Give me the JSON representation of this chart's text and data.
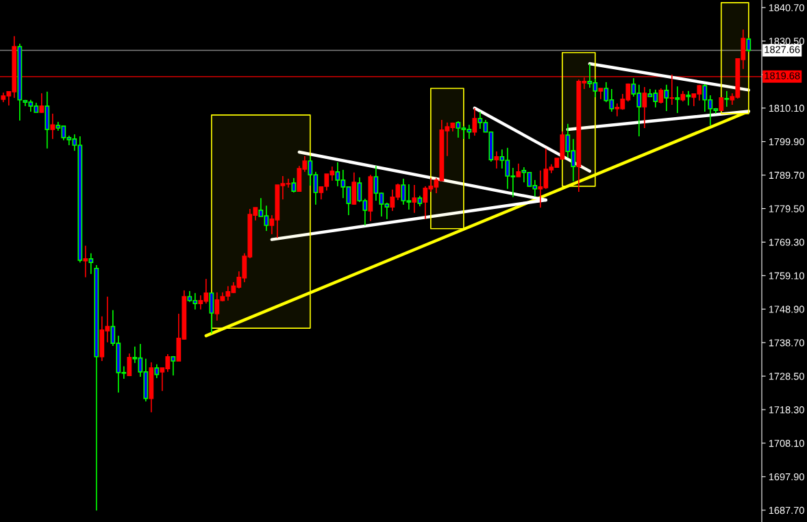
{
  "chart_data": {
    "type": "candlestick",
    "categories": [
      null,
      null,
      null,
      null,
      null,
      null,
      null,
      null,
      null,
      null,
      null,
      null,
      null,
      null,
      null,
      null,
      null,
      null,
      null,
      null,
      null,
      null,
      null,
      null,
      null,
      null,
      null,
      null,
      null,
      null,
      null,
      null,
      null,
      null,
      null,
      null,
      null,
      null,
      null,
      null,
      null,
      null,
      null,
      null,
      null,
      null,
      null,
      null,
      null,
      null,
      null,
      null,
      null,
      null,
      null,
      null,
      null,
      null,
      null,
      null,
      null,
      null,
      null,
      null,
      null,
      null,
      null,
      null,
      null,
      null,
      null,
      null,
      null,
      null,
      null,
      null,
      null,
      null,
      null,
      null,
      null,
      null,
      null,
      null,
      null,
      null,
      null,
      null,
      null,
      null,
      null,
      null,
      null,
      null,
      null,
      null,
      null,
      null,
      null,
      null,
      null,
      null,
      null,
      null,
      null,
      null,
      null,
      null,
      null,
      null,
      null,
      null,
      null,
      null,
      null,
      null,
      null,
      null,
      null,
      null,
      null,
      null,
      null,
      null,
      null,
      null,
      null,
      null,
      null,
      null,
      null,
      null,
      null,
      null,
      null,
      null,
      null
    ],
    "ohlc": [
      [
        1812.8,
        1814.8,
        1811.9,
        1813.8
      ],
      [
        1813.8,
        1815.1,
        1810.9,
        1815.1
      ],
      [
        1815.1,
        1832.0,
        1813.2,
        1828.8
      ],
      [
        1828.8,
        1829.7,
        1806.3,
        1812.6
      ],
      [
        1812.4,
        1812.6,
        1810.7,
        1811.9
      ],
      [
        1811.9,
        1812.6,
        1809.0,
        1810.7
      ],
      [
        1810.7,
        1811.7,
        1808.8,
        1808.8
      ],
      [
        1808.8,
        1814.6,
        1808.6,
        1810.7
      ],
      [
        1810.7,
        1815.1,
        1797.8,
        1803.6
      ],
      [
        1803.6,
        1808.4,
        1800.7,
        1805.0
      ],
      [
        1804.8,
        1805.9,
        1803.2,
        1804.0
      ],
      [
        1804.6,
        1804.6,
        1800.3,
        1801.1
      ],
      [
        1801.1,
        1801.7,
        1798.8,
        1800.5
      ],
      [
        1800.7,
        1802.1,
        1797.1,
        1798.8
      ],
      [
        1798.8,
        1801.5,
        1763.1,
        1763.8
      ],
      [
        1763.6,
        1768.2,
        1758.6,
        1764.2
      ],
      [
        1764.2,
        1765.9,
        1759.6,
        1763.1
      ],
      [
        1761.3,
        1762.3,
        1687.6,
        1734.4
      ],
      [
        1734.4,
        1746.7,
        1733.1,
        1742.5
      ],
      [
        1742.3,
        1752.7,
        1738.8,
        1743.6
      ],
      [
        1743.6,
        1748.6,
        1737.7,
        1738.5
      ],
      [
        1738.5,
        1740.8,
        1723.5,
        1729.6
      ],
      [
        1729.6,
        1731.5,
        1727.7,
        1729.4
      ],
      [
        1728.7,
        1735.4,
        1728.5,
        1734.2
      ],
      [
        1734.2,
        1737.5,
        1732.5,
        1733.8
      ],
      [
        1734.0,
        1738.3,
        1728.3,
        1729.8
      ],
      [
        1729.8,
        1733.8,
        1720.8,
        1721.7
      ],
      [
        1721.7,
        1732.7,
        1717.5,
        1731.0
      ],
      [
        1731.0,
        1732.1,
        1727.9,
        1729.0
      ],
      [
        1729.8,
        1731.0,
        1724.0,
        1731.0
      ],
      [
        1730.8,
        1735.2,
        1729.8,
        1734.4
      ],
      [
        1734.4,
        1734.6,
        1728.7,
        1733.1
      ],
      [
        1733.1,
        1747.5,
        1733.1,
        1740.0
      ],
      [
        1739.8,
        1754.6,
        1739.6,
        1752.7
      ],
      [
        1752.7,
        1754.4,
        1751.1,
        1751.5
      ],
      [
        1751.5,
        1753.8,
        1748.8,
        1750.6
      ],
      [
        1750.6,
        1753.1,
        1748.8,
        1751.5
      ],
      [
        1751.3,
        1758.1,
        1750.6,
        1753.8
      ],
      [
        1753.8,
        1753.8,
        1741.5,
        1747.7
      ],
      [
        1747.5,
        1754.0,
        1745.4,
        1751.7
      ],
      [
        1751.5,
        1754.0,
        1751.3,
        1752.7
      ],
      [
        1752.9,
        1755.9,
        1751.5,
        1754.2
      ],
      [
        1754.0,
        1757.1,
        1753.8,
        1755.9
      ],
      [
        1755.6,
        1760.4,
        1755.2,
        1758.6
      ],
      [
        1758.4,
        1765.9,
        1757.1,
        1765.0
      ],
      [
        1764.8,
        1779.4,
        1764.4,
        1777.7
      ],
      [
        1777.5,
        1779.8,
        1775.9,
        1779.8
      ],
      [
        1779.0,
        1782.7,
        1777.1,
        1777.1
      ],
      [
        1777.3,
        1780.4,
        1772.7,
        1774.4
      ],
      [
        1774.4,
        1777.5,
        1771.7,
        1776.3
      ],
      [
        1776.1,
        1786.7,
        1770.6,
        1786.7
      ],
      [
        1786.5,
        1789.4,
        1782.3,
        1787.1
      ],
      [
        1787.0,
        1788.6,
        1785.9,
        1787.1
      ],
      [
        1787.3,
        1788.8,
        1784.4,
        1784.8
      ],
      [
        1784.8,
        1792.5,
        1784.8,
        1791.7
      ],
      [
        1791.5,
        1795.5,
        1790.7,
        1794.0
      ],
      [
        1794.0,
        1795.5,
        1786.5,
        1789.8
      ],
      [
        1789.8,
        1790.7,
        1780.7,
        1784.4
      ],
      [
        1784.4,
        1786.1,
        1782.3,
        1786.1
      ],
      [
        1786.3,
        1790.0,
        1785.0,
        1790.0
      ],
      [
        1789.8,
        1792.3,
        1788.0,
        1790.9
      ],
      [
        1790.7,
        1793.6,
        1786.3,
        1788.2
      ],
      [
        1788.2,
        1791.3,
        1782.7,
        1786.1
      ],
      [
        1786.1,
        1786.1,
        1777.5,
        1781.1
      ],
      [
        1780.9,
        1790.5,
        1780.7,
        1787.5
      ],
      [
        1787.3,
        1789.0,
        1781.5,
        1781.9
      ],
      [
        1781.9,
        1782.5,
        1774.4,
        1779.0
      ],
      [
        1778.8,
        1789.8,
        1775.7,
        1789.2
      ],
      [
        1789.2,
        1792.5,
        1781.9,
        1784.2
      ],
      [
        1784.2,
        1784.4,
        1777.1,
        1780.9
      ],
      [
        1780.9,
        1781.3,
        1776.3,
        1780.0
      ],
      [
        1780.0,
        1785.3,
        1778.8,
        1783.0
      ],
      [
        1783.0,
        1787.1,
        1782.1,
        1786.7
      ],
      [
        1786.7,
        1788.6,
        1780.7,
        1781.9
      ],
      [
        1781.9,
        1786.9,
        1779.2,
        1781.5
      ],
      [
        1781.5,
        1786.7,
        1778.2,
        1782.7
      ],
      [
        1782.7,
        1783.4,
        1780.2,
        1781.1
      ],
      [
        1781.5,
        1786.3,
        1776.3,
        1785.7
      ],
      [
        1785.5,
        1788.8,
        1784.6,
        1786.3
      ],
      [
        1786.1,
        1788.8,
        1784.2,
        1788.2
      ],
      [
        1788.0,
        1806.5,
        1787.8,
        1803.4
      ],
      [
        1803.2,
        1805.7,
        1795.5,
        1804.4
      ],
      [
        1804.2,
        1805.7,
        1803.0,
        1805.5
      ],
      [
        1805.7,
        1806.1,
        1801.1,
        1804.0
      ],
      [
        1804.0,
        1804.6,
        1800.7,
        1803.6
      ],
      [
        1803.6,
        1805.0,
        1800.7,
        1802.8
      ],
      [
        1802.8,
        1810.1,
        1801.7,
        1806.9
      ],
      [
        1806.9,
        1809.0,
        1803.8,
        1805.7
      ],
      [
        1805.7,
        1806.5,
        1802.8,
        1802.8
      ],
      [
        1802.8,
        1803.0,
        1793.8,
        1794.4
      ],
      [
        1794.4,
        1796.9,
        1791.7,
        1795.3
      ],
      [
        1795.3,
        1797.5,
        1791.7,
        1794.2
      ],
      [
        1794.2,
        1798.0,
        1785.5,
        1789.4
      ],
      [
        1789.4,
        1791.9,
        1783.0,
        1789.2
      ],
      [
        1789.2,
        1793.2,
        1789.2,
        1790.7
      ],
      [
        1791.1,
        1792.1,
        1787.5,
        1790.5
      ],
      [
        1790.5,
        1790.5,
        1786.3,
        1786.3
      ],
      [
        1786.5,
        1788.2,
        1783.2,
        1785.5
      ],
      [
        1785.5,
        1791.1,
        1779.8,
        1786.1
      ],
      [
        1785.9,
        1797.8,
        1785.5,
        1791.5
      ],
      [
        1791.3,
        1793.0,
        1790.3,
        1792.1
      ],
      [
        1792.1,
        1794.8,
        1792.1,
        1794.8
      ],
      [
        1794.6,
        1803.0,
        1794.6,
        1801.9
      ],
      [
        1801.9,
        1805.3,
        1795.0,
        1796.9
      ],
      [
        1797.1,
        1800.7,
        1787.8,
        1792.3
      ],
      [
        1792.3,
        1818.8,
        1784.6,
        1818.2
      ],
      [
        1817.8,
        1819.4,
        1815.9,
        1818.2
      ],
      [
        1818.2,
        1823.6,
        1816.3,
        1817.6
      ],
      [
        1817.8,
        1819.0,
        1813.4,
        1815.3
      ],
      [
        1815.3,
        1816.1,
        1812.8,
        1816.1
      ],
      [
        1816.1,
        1818.0,
        1811.9,
        1812.4
      ],
      [
        1812.6,
        1815.9,
        1809.0,
        1809.9
      ],
      [
        1809.9,
        1811.5,
        1807.6,
        1810.3
      ],
      [
        1809.9,
        1814.4,
        1809.6,
        1812.8
      ],
      [
        1812.6,
        1817.6,
        1812.1,
        1817.4
      ],
      [
        1817.4,
        1819.2,
        1813.6,
        1814.4
      ],
      [
        1814.6,
        1817.2,
        1801.5,
        1810.5
      ],
      [
        1810.5,
        1816.5,
        1804.0,
        1814.6
      ],
      [
        1814.4,
        1815.9,
        1813.6,
        1813.6
      ],
      [
        1814.6,
        1815.7,
        1810.3,
        1812.1
      ],
      [
        1811.9,
        1816.1,
        1811.5,
        1815.5
      ],
      [
        1815.5,
        1817.2,
        1809.2,
        1813.2
      ],
      [
        1813.1,
        1820.3,
        1811.1,
        1813.2
      ],
      [
        1813.2,
        1816.7,
        1808.6,
        1812.8
      ],
      [
        1812.6,
        1815.3,
        1812.1,
        1814.2
      ],
      [
        1814.0,
        1815.3,
        1810.9,
        1813.6
      ],
      [
        1813.4,
        1814.4,
        1810.7,
        1814.4
      ],
      [
        1814.4,
        1817.2,
        1812.4,
        1816.9
      ],
      [
        1816.9,
        1817.4,
        1809.0,
        1812.6
      ],
      [
        1812.6,
        1814.0,
        1804.8,
        1809.9
      ],
      [
        1809.9,
        1810.1,
        1808.4,
        1809.4
      ],
      [
        1809.4,
        1813.2,
        1809.4,
        1813.2
      ],
      [
        1813.0,
        1815.3,
        1810.5,
        1812.8
      ],
      [
        1812.6,
        1814.6,
        1811.1,
        1813.6
      ],
      [
        1813.4,
        1825.1,
        1813.0,
        1825.1
      ],
      [
        1824.9,
        1834.0,
        1822.0,
        1831.3
      ],
      [
        1831.1,
        1831.5,
        1827.2,
        1827.7
      ]
    ],
    "series": [
      {
        "type": "line",
        "color": "#ffff00",
        "values": [
          null,
          null,
          null,
          null,
          null,
          null,
          null,
          null,
          null,
          null,
          null,
          null,
          null,
          null,
          null,
          null,
          null,
          null,
          null,
          null,
          null,
          null,
          null,
          null,
          null,
          null,
          null,
          null,
          null,
          null,
          null,
          null,
          null,
          null,
          null,
          null,
          null,
          1740.8,
          null,
          null,
          null,
          null,
          null,
          null,
          null,
          null,
          null,
          null,
          null,
          null,
          null,
          null,
          null,
          null,
          null,
          null,
          null,
          null,
          null,
          null,
          null,
          null,
          null,
          null,
          null,
          null,
          null,
          null,
          null,
          null,
          null,
          null,
          null,
          null,
          null,
          null,
          null,
          null,
          null,
          null,
          null,
          null,
          null,
          null,
          null,
          null,
          null,
          null,
          null,
          null,
          null,
          null,
          null,
          null,
          null,
          null,
          null,
          null,
          null,
          null,
          null,
          null,
          null,
          null,
          null,
          null,
          null,
          null,
          null,
          null,
          null,
          null,
          null,
          null,
          null,
          null,
          null,
          null,
          null,
          null,
          null,
          null,
          null,
          null,
          null,
          null,
          null,
          null,
          null,
          null,
          null,
          null,
          null,
          null,
          null,
          null,
          1809.1
        ]
      },
      {
        "type": "line",
        "color": "#ffffff",
        "values": [
          null,
          null,
          null,
          null,
          null,
          null,
          null,
          null,
          null,
          null,
          null,
          null,
          null,
          null,
          null,
          null,
          null,
          null,
          null,
          null,
          null,
          null,
          null,
          null,
          null,
          null,
          null,
          null,
          null,
          null,
          null,
          null,
          null,
          null,
          null,
          null,
          null,
          null,
          null,
          null,
          null,
          null,
          null,
          null,
          null,
          null,
          null,
          null,
          null,
          null,
          null,
          null,
          null,
          null,
          1796.7,
          null,
          null,
          null,
          null,
          null,
          null,
          null,
          null,
          null,
          null,
          null,
          null,
          null,
          null,
          null,
          null,
          null,
          null,
          null,
          null,
          null,
          null,
          null,
          null,
          null,
          null,
          null,
          null,
          null,
          null,
          null,
          null,
          null,
          null,
          null,
          null,
          null,
          null,
          null,
          null,
          null,
          null,
          null,
          null,
          1782.1,
          null,
          null,
          null,
          null,
          null,
          null,
          null,
          null,
          null,
          null,
          null,
          null,
          null,
          null,
          null,
          null,
          null,
          null,
          null,
          null,
          null,
          null,
          null,
          null,
          null,
          null,
          null,
          null,
          null,
          null,
          null,
          null,
          null,
          null,
          null,
          null,
          null
        ]
      },
      {
        "type": "line",
        "color": "#ffffff",
        "values": [
          null,
          null,
          null,
          null,
          null,
          null,
          null,
          null,
          null,
          null,
          null,
          null,
          null,
          null,
          null,
          null,
          null,
          null,
          null,
          null,
          null,
          null,
          null,
          null,
          null,
          null,
          null,
          null,
          null,
          null,
          null,
          null,
          null,
          null,
          null,
          null,
          null,
          null,
          null,
          null,
          null,
          null,
          null,
          null,
          null,
          null,
          null,
          null,
          null,
          1770.1,
          null,
          null,
          null,
          null,
          null,
          null,
          null,
          null,
          null,
          null,
          null,
          null,
          null,
          null,
          null,
          null,
          null,
          null,
          null,
          null,
          null,
          null,
          null,
          null,
          null,
          null,
          null,
          null,
          null,
          null,
          null,
          null,
          null,
          null,
          null,
          null,
          null,
          null,
          null,
          null,
          null,
          null,
          null,
          null,
          null,
          null,
          null,
          null,
          null,
          1782.1,
          null,
          null,
          null,
          null,
          null,
          null,
          null,
          null,
          null,
          null,
          null,
          null,
          null,
          null,
          null,
          null,
          null,
          null,
          null,
          null,
          null,
          null,
          null,
          null,
          null,
          null,
          null,
          null,
          null,
          null,
          null,
          null,
          null,
          null,
          null,
          null,
          null
        ]
      },
      {
        "type": "line",
        "color": "#ffffff",
        "values": [
          null,
          null,
          null,
          null,
          null,
          null,
          null,
          null,
          null,
          null,
          null,
          null,
          null,
          null,
          null,
          null,
          null,
          null,
          null,
          null,
          null,
          null,
          null,
          null,
          null,
          null,
          null,
          null,
          null,
          null,
          null,
          null,
          null,
          null,
          null,
          null,
          null,
          null,
          null,
          null,
          null,
          null,
          null,
          null,
          null,
          null,
          null,
          null,
          null,
          null,
          null,
          null,
          null,
          null,
          null,
          null,
          null,
          null,
          null,
          null,
          null,
          null,
          null,
          null,
          null,
          null,
          null,
          null,
          null,
          null,
          null,
          null,
          null,
          null,
          null,
          null,
          null,
          null,
          null,
          null,
          null,
          null,
          null,
          null,
          null,
          null,
          1810.1,
          null,
          null,
          null,
          null,
          null,
          null,
          null,
          null,
          null,
          null,
          null,
          null,
          null,
          null,
          null,
          null,
          null,
          null,
          null,
          null,
          1790.9,
          null,
          null,
          null,
          null,
          null,
          null,
          null,
          null,
          null,
          null,
          null,
          null,
          null,
          null,
          null,
          null,
          null,
          null,
          null,
          null,
          null,
          null,
          null,
          null,
          null,
          null,
          null,
          null,
          null
        ]
      },
      {
        "type": "line",
        "color": "#ffffff",
        "values": [
          null,
          null,
          null,
          null,
          null,
          null,
          null,
          null,
          null,
          null,
          null,
          null,
          null,
          null,
          null,
          null,
          null,
          null,
          null,
          null,
          null,
          null,
          null,
          null,
          null,
          null,
          null,
          null,
          null,
          null,
          null,
          null,
          null,
          null,
          null,
          null,
          null,
          null,
          null,
          null,
          null,
          null,
          null,
          null,
          null,
          null,
          null,
          null,
          null,
          null,
          null,
          null,
          null,
          null,
          null,
          null,
          null,
          null,
          null,
          null,
          null,
          null,
          null,
          null,
          null,
          null,
          null,
          null,
          null,
          null,
          null,
          null,
          null,
          null,
          null,
          null,
          null,
          null,
          null,
          null,
          null,
          null,
          null,
          null,
          null,
          null,
          null,
          null,
          null,
          null,
          null,
          null,
          null,
          null,
          null,
          null,
          null,
          null,
          null,
          null,
          null,
          null,
          null,
          null,
          null,
          null,
          null,
          1823.6,
          null,
          null,
          null,
          null,
          null,
          null,
          null,
          null,
          null,
          null,
          null,
          null,
          null,
          null,
          null,
          null,
          null,
          null,
          null,
          null,
          null,
          null,
          null,
          null,
          null,
          null,
          null,
          null,
          1815.6
        ]
      },
      {
        "type": "line",
        "color": "#ffffff",
        "values": [
          null,
          null,
          null,
          null,
          null,
          null,
          null,
          null,
          null,
          null,
          null,
          null,
          null,
          null,
          null,
          null,
          null,
          null,
          null,
          null,
          null,
          null,
          null,
          null,
          null,
          null,
          null,
          null,
          null,
          null,
          null,
          null,
          null,
          null,
          null,
          null,
          null,
          null,
          null,
          null,
          null,
          null,
          null,
          null,
          null,
          null,
          null,
          null,
          null,
          null,
          null,
          null,
          null,
          null,
          null,
          null,
          null,
          null,
          null,
          null,
          null,
          null,
          null,
          null,
          null,
          null,
          null,
          null,
          null,
          null,
          null,
          null,
          null,
          null,
          null,
          null,
          null,
          null,
          null,
          null,
          null,
          null,
          null,
          null,
          null,
          null,
          null,
          null,
          null,
          null,
          null,
          null,
          null,
          null,
          null,
          null,
          null,
          null,
          null,
          null,
          null,
          null,
          null,
          1803.6,
          null,
          null,
          null,
          null,
          null,
          null,
          null,
          null,
          null,
          null,
          null,
          null,
          null,
          null,
          null,
          null,
          null,
          null,
          null,
          null,
          null,
          null,
          null,
          null,
          null,
          null,
          null,
          null,
          null,
          null,
          null,
          null,
          1809.1
        ]
      },
      {
        "type": "line",
        "color": "#ffff00",
        "values": [
          null,
          null,
          null,
          null,
          null,
          null,
          null,
          null,
          null,
          null,
          null,
          null,
          null,
          null,
          null,
          null,
          null,
          null,
          null,
          null,
          null,
          null,
          null,
          null,
          null,
          null,
          null,
          null,
          null,
          null,
          null,
          null,
          null,
          null,
          null,
          null,
          null,
          null,
          null,
          null,
          null,
          null,
          null,
          null,
          null,
          null,
          null,
          null,
          null,
          null,
          null,
          null,
          null,
          null,
          null,
          null,
          null,
          null,
          null,
          null,
          null,
          null,
          null,
          null,
          null,
          null,
          null,
          null,
          null,
          null,
          null,
          null,
          null,
          null,
          null,
          null,
          null,
          null,
          null,
          null,
          null,
          null,
          null,
          null,
          null,
          null,
          null,
          null,
          null,
          null,
          null,
          null,
          null,
          null,
          null,
          null,
          null,
          null,
          null,
          null,
          null,
          null,
          null,
          null,
          null,
          null,
          null,
          null,
          null,
          null,
          null,
          null,
          null,
          null,
          null,
          null,
          null,
          null,
          null,
          null,
          null,
          null,
          null,
          null,
          null,
          null,
          null,
          null,
          null,
          null,
          null,
          null,
          null,
          null,
          null,
          null,
          null
        ],
        "lower": [
          null,
          null,
          null,
          null,
          null,
          null,
          null,
          null,
          null,
          null,
          null,
          null,
          null,
          null,
          null,
          null,
          null,
          null,
          null,
          null,
          null,
          null,
          null,
          null,
          null,
          null,
          null,
          null,
          null,
          null,
          null,
          null,
          null,
          null,
          null,
          null,
          null,
          null,
          1743.1,
          1743.1,
          1743.1,
          1743.1,
          1743.1,
          1743.1,
          1743.1,
          1743.1,
          1743.1,
          1743.1,
          1743.1,
          1743.1,
          1743.1,
          1743.1,
          1743.1,
          1743.1,
          1743.1,
          1743.1,
          1743.1,
          null,
          null,
          null,
          null,
          null,
          null,
          null,
          null,
          null,
          null,
          null,
          null,
          null,
          null,
          null,
          null,
          null,
          null,
          null,
          null,
          null,
          1773.4,
          1773.4,
          1773.4,
          1773.4,
          1773.4,
          1773.4,
          1773.4,
          null,
          null,
          null,
          null,
          null,
          null,
          null,
          null,
          null,
          null,
          null,
          null,
          null,
          null,
          null,
          null,
          null,
          1786.3,
          1786.3,
          1786.3,
          1786.3,
          1786.3,
          1786.3,
          1786.3,
          null,
          null,
          null,
          null,
          null,
          null,
          null,
          null,
          null,
          null,
          null,
          null,
          null,
          null,
          null,
          null,
          null,
          null,
          null,
          null,
          null,
          null,
          1808.4,
          1808.4,
          1808.4,
          1808.4,
          1808.4,
          1808.4
        ],
        "upper": [
          null,
          null,
          null,
          null,
          null,
          null,
          null,
          null,
          null,
          null,
          null,
          null,
          null,
          null,
          null,
          null,
          null,
          null,
          null,
          null,
          null,
          null,
          null,
          null,
          null,
          null,
          null,
          null,
          null,
          null,
          null,
          null,
          null,
          null,
          null,
          null,
          null,
          null,
          1808.0,
          1808.0,
          1808.0,
          1808.0,
          1808.0,
          1808.0,
          1808.0,
          1808.0,
          1808.0,
          1808.0,
          1808.0,
          1808.0,
          1808.0,
          1808.0,
          1808.0,
          1808.0,
          1808.0,
          1808.0,
          1808.0,
          null,
          null,
          null,
          null,
          null,
          null,
          null,
          null,
          null,
          null,
          null,
          null,
          null,
          null,
          null,
          null,
          null,
          null,
          null,
          null,
          null,
          1816.1,
          1816.1,
          1816.1,
          1816.1,
          1816.1,
          1816.1,
          1816.1,
          null,
          null,
          null,
          null,
          null,
          null,
          null,
          null,
          null,
          null,
          null,
          null,
          null,
          null,
          null,
          null,
          null,
          1827.0,
          1827.0,
          1827.0,
          1827.0,
          1827.0,
          1827.0,
          1827.0,
          null,
          null,
          null,
          null,
          null,
          null,
          null,
          null,
          null,
          null,
          null,
          null,
          null,
          null,
          null,
          null,
          null,
          null,
          null,
          null,
          null,
          null,
          1842.2,
          1842.2,
          1842.2,
          1842.2,
          1842.2,
          1842.2
        ]
      }
    ],
    "ref_lines": [
      {
        "axis": "y",
        "value": 1827.66,
        "label": "1827.66",
        "color": "#808080"
      },
      {
        "axis": "y",
        "value": 1819.68,
        "label": "1819.68",
        "color": "#ff0000"
      }
    ],
    "ylim": [
      1684.1,
      1843.0
    ],
    "yticks": [
      {
        "value": 1840.7,
        "label": "1840.70"
      },
      {
        "value": 1830.5,
        "label": "1830.50"
      },
      {
        "value": 1820.3,
        "label": null
      },
      {
        "value": 1810.1,
        "label": "1810.10"
      },
      {
        "value": 1799.9,
        "label": "1799.90"
      },
      {
        "value": 1789.7,
        "label": "1789.70"
      },
      {
        "value": 1779.5,
        "label": "1779.50"
      },
      {
        "value": 1769.3,
        "label": "1769.30"
      },
      {
        "value": 1759.1,
        "label": "1759.10"
      },
      {
        "value": 1748.9,
        "label": "1748.90"
      },
      {
        "value": 1738.7,
        "label": "1738.70"
      },
      {
        "value": 1728.5,
        "label": "1728.50"
      },
      {
        "value": 1718.3,
        "label": "1718.30"
      },
      {
        "value": 1708.1,
        "label": "1708.10"
      },
      {
        "value": 1697.9,
        "label": "1697.90"
      },
      {
        "value": 1687.7,
        "label": "1687.70"
      }
    ],
    "tick_labels": "y",
    "marker": "none"
  }
}
